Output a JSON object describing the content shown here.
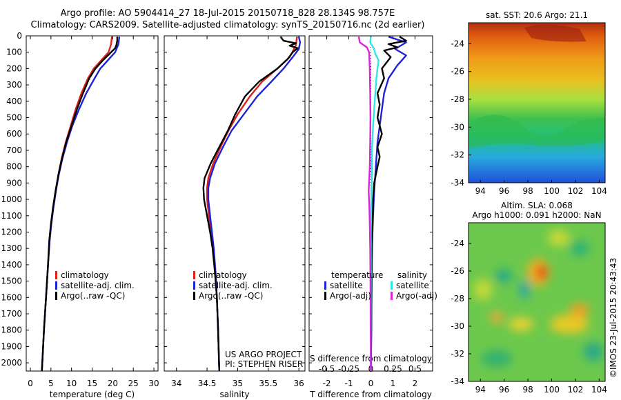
{
  "header": {
    "line1": "Argo profile: AO 5904414_27 18-Jul-2015 20150718_828 28.134S 98.757E",
    "line2": "Climatology: CARS2009. Satellite-adjusted climatology: synTS_20150716.nc (2d earlier)"
  },
  "colors": {
    "climatology": "#e0201b",
    "satellite": "#1d22d6",
    "argo": "#000000",
    "sal_satellite": "#2fe6e6",
    "sal_argo": "#e020e0"
  },
  "credit": {
    "line1": "US ARGO PROJECT",
    "line2": "PI: STEPHEN RISER"
  },
  "imos_stamp": "©IMOS 23-Jul-2015 20:43:43",
  "chart_data": [
    {
      "type": "line",
      "panel": "temperature",
      "xlabel": "temperature (deg C)",
      "xlim": [
        -1,
        31
      ],
      "ylim": [
        2050,
        0
      ],
      "xticks": [
        0,
        5,
        10,
        15,
        20,
        25,
        30
      ],
      "yticks": [
        0,
        100,
        200,
        300,
        400,
        500,
        600,
        700,
        800,
        900,
        1000,
        1100,
        1200,
        1300,
        1400,
        1500,
        1600,
        1700,
        1800,
        1900,
        2000
      ],
      "legend": [
        "climatology",
        "satellite-adj. clim.",
        "Argo(..raw -QC)"
      ],
      "series": [
        {
          "name": "climatology",
          "color_key": "climatology",
          "points": [
            [
              19.8,
              5
            ],
            [
              19.6,
              50
            ],
            [
              19.0,
              100
            ],
            [
              17.2,
              150
            ],
            [
              15.4,
              200
            ],
            [
              14.0,
              260
            ],
            [
              12.4,
              350
            ],
            [
              11.0,
              450
            ],
            [
              9.8,
              550
            ],
            [
              8.6,
              650
            ],
            [
              7.6,
              750
            ],
            [
              6.8,
              850
            ],
            [
              6.2,
              950
            ],
            [
              5.6,
              1050
            ],
            [
              5.1,
              1150
            ],
            [
              4.7,
              1250
            ],
            [
              4.3,
              1400
            ],
            [
              3.8,
              1600
            ],
            [
              3.3,
              1800
            ],
            [
              3.0,
              1950
            ],
            [
              2.8,
              2050
            ]
          ]
        },
        {
          "name": "satellite-adj. clim.",
          "color_key": "satellite",
          "points": [
            [
              21.6,
              5
            ],
            [
              21.4,
              50
            ],
            [
              20.6,
              100
            ],
            [
              18.8,
              150
            ],
            [
              17.0,
              200
            ],
            [
              15.6,
              260
            ],
            [
              13.6,
              350
            ],
            [
              11.8,
              450
            ],
            [
              10.2,
              550
            ],
            [
              8.9,
              650
            ],
            [
              7.8,
              750
            ],
            [
              6.9,
              850
            ],
            [
              6.2,
              950
            ],
            [
              5.6,
              1050
            ],
            [
              5.1,
              1150
            ],
            [
              4.7,
              1250
            ],
            [
              4.3,
              1400
            ],
            [
              3.8,
              1600
            ],
            [
              3.3,
              1800
            ],
            [
              3.0,
              1950
            ],
            [
              2.8,
              2050
            ]
          ]
        },
        {
          "name": "Argo(..raw -QC)",
          "color_key": "argo",
          "points": [
            [
              21.1,
              5
            ],
            [
              21.1,
              30
            ],
            [
              20.9,
              55
            ],
            [
              20.6,
              75
            ],
            [
              19.2,
              110
            ],
            [
              17.6,
              150
            ],
            [
              15.8,
              200
            ],
            [
              14.3,
              260
            ],
            [
              12.8,
              350
            ],
            [
              11.3,
              450
            ],
            [
              10.0,
              550
            ],
            [
              8.7,
              650
            ],
            [
              7.7,
              750
            ],
            [
              6.8,
              850
            ],
            [
              6.1,
              950
            ],
            [
              5.5,
              1050
            ],
            [
              5.0,
              1150
            ],
            [
              4.6,
              1250
            ],
            [
              4.3,
              1400
            ],
            [
              3.8,
              1600
            ],
            [
              3.3,
              1800
            ],
            [
              3.0,
              1950
            ],
            [
              2.8,
              2050
            ]
          ]
        }
      ]
    },
    {
      "type": "line",
      "panel": "salinity",
      "xlabel": "salinity",
      "xlim": [
        33.8,
        36.1
      ],
      "ylim": [
        2050,
        0
      ],
      "xticks": [
        34,
        34.5,
        35,
        35.5,
        36
      ],
      "legend": [
        "climatology",
        "satellite-adj. clim.",
        "Argo(..raw -QC)"
      ],
      "series": [
        {
          "name": "climatology",
          "color_key": "climatology",
          "points": [
            [
              35.97,
              5
            ],
            [
              35.95,
              60
            ],
            [
              35.85,
              130
            ],
            [
              35.65,
              200
            ],
            [
              35.4,
              280
            ],
            [
              35.2,
              370
            ],
            [
              35.0,
              480
            ],
            [
              34.85,
              580
            ],
            [
              34.72,
              680
            ],
            [
              34.6,
              780
            ],
            [
              34.52,
              870
            ],
            [
              34.5,
              930
            ],
            [
              34.5,
              1000
            ],
            [
              34.53,
              1100
            ],
            [
              34.57,
              1200
            ],
            [
              34.6,
              1300
            ],
            [
              34.63,
              1450
            ],
            [
              34.66,
              1600
            ],
            [
              34.68,
              1800
            ],
            [
              34.7,
              2050
            ]
          ]
        },
        {
          "name": "satellite-adj. clim.",
          "color_key": "satellite",
          "points": [
            [
              36.0,
              5
            ],
            [
              36.02,
              40
            ],
            [
              36.0,
              80
            ],
            [
              35.9,
              130
            ],
            [
              35.75,
              200
            ],
            [
              35.55,
              280
            ],
            [
              35.32,
              370
            ],
            [
              35.1,
              480
            ],
            [
              34.9,
              580
            ],
            [
              34.76,
              680
            ],
            [
              34.63,
              780
            ],
            [
              34.55,
              870
            ],
            [
              34.52,
              930
            ],
            [
              34.52,
              1000
            ],
            [
              34.55,
              1100
            ],
            [
              34.58,
              1200
            ],
            [
              34.61,
              1300
            ],
            [
              34.64,
              1450
            ],
            [
              34.66,
              1600
            ],
            [
              34.68,
              1800
            ],
            [
              34.7,
              2050
            ]
          ]
        },
        {
          "name": "Argo(..raw -QC)",
          "color_key": "argo",
          "points": [
            [
              35.7,
              5
            ],
            [
              35.75,
              30
            ],
            [
              35.95,
              45
            ],
            [
              35.85,
              60
            ],
            [
              35.98,
              75
            ],
            [
              35.9,
              100
            ],
            [
              35.82,
              140
            ],
            [
              35.65,
              200
            ],
            [
              35.35,
              280
            ],
            [
              35.12,
              370
            ],
            [
              34.96,
              480
            ],
            [
              34.84,
              580
            ],
            [
              34.7,
              680
            ],
            [
              34.56,
              780
            ],
            [
              34.46,
              870
            ],
            [
              34.44,
              930
            ],
            [
              34.45,
              1000
            ],
            [
              34.5,
              1100
            ],
            [
              34.55,
              1200
            ],
            [
              34.59,
              1300
            ],
            [
              34.63,
              1450
            ],
            [
              34.66,
              1600
            ],
            [
              34.68,
              1800
            ],
            [
              34.7,
              2050
            ]
          ]
        }
      ]
    },
    {
      "type": "line",
      "panel": "difference",
      "xlabel": "T difference from climatology",
      "x2label": "S difference from climatology",
      "xlim": [
        -2.8,
        2.8
      ],
      "ylim": [
        2050,
        0
      ],
      "xticks": [
        -2,
        -1,
        0,
        1,
        2
      ],
      "x2ticks": [
        -0.5,
        -0.25,
        0,
        0.25,
        0.5
      ],
      "x2scale": 4,
      "legend_groups": [
        {
          "title": "temperature",
          "items": [
            "satellite",
            "Argo(-adj)"
          ]
        },
        {
          "title": "salinity",
          "items": [
            "satellite",
            "Argo(-adj)"
          ]
        }
      ],
      "series": [
        {
          "name": "satellite",
          "group": "temperature",
          "color_key": "satellite",
          "points": [
            [
              0.8,
              5
            ],
            [
              1.6,
              40
            ],
            [
              1.1,
              80
            ],
            [
              1.6,
              120
            ],
            [
              1.2,
              180
            ],
            [
              0.8,
              260
            ],
            [
              0.6,
              350
            ],
            [
              0.5,
              450
            ],
            [
              0.4,
              550
            ],
            [
              0.3,
              650
            ],
            [
              0.25,
              750
            ],
            [
              0.2,
              850
            ],
            [
              0.15,
              950
            ],
            [
              0.1,
              1100
            ],
            [
              0.05,
              1300
            ],
            [
              0.03,
              1500
            ],
            [
              0.02,
              1800
            ],
            [
              0.0,
              2050
            ]
          ]
        },
        {
          "name": "Argo(-adj)",
          "group": "temperature",
          "color_key": "argo",
          "points": [
            [
              1.3,
              5
            ],
            [
              1.6,
              30
            ],
            [
              0.8,
              50
            ],
            [
              1.2,
              70
            ],
            [
              0.6,
              90
            ],
            [
              0.9,
              130
            ],
            [
              0.5,
              200
            ],
            [
              0.6,
              260
            ],
            [
              0.3,
              350
            ],
            [
              0.4,
              420
            ],
            [
              0.3,
              500
            ],
            [
              0.5,
              600
            ],
            [
              0.3,
              680
            ],
            [
              0.4,
              740
            ],
            [
              0.3,
              800
            ],
            [
              0.15,
              900
            ],
            [
              0.1,
              1000
            ],
            [
              0.08,
              1100
            ],
            [
              0.05,
              1300
            ],
            [
              0.03,
              1500
            ],
            [
              0.02,
              1800
            ],
            [
              0.0,
              2050
            ]
          ]
        },
        {
          "name": "satellite",
          "group": "salinity",
          "color_key": "sal_satellite",
          "points": [
            [
              0.0,
              5
            ],
            [
              -0.03,
              40
            ],
            [
              0.15,
              80
            ],
            [
              0.2,
              110
            ],
            [
              0.35,
              150
            ],
            [
              0.3,
              200
            ],
            [
              0.25,
              260
            ],
            [
              0.2,
              350
            ],
            [
              0.15,
              450
            ],
            [
              0.1,
              550
            ],
            [
              0.05,
              700
            ],
            [
              0.05,
              850
            ],
            [
              0.02,
              1000
            ],
            [
              0.0,
              1200
            ],
            [
              0.0,
              1500
            ],
            [
              0.0,
              1800
            ],
            [
              0.0,
              2050
            ]
          ]
        },
        {
          "name": "Argo(-adj)",
          "group": "salinity",
          "color_key": "sal_argo",
          "points": [
            [
              -0.55,
              5
            ],
            [
              -0.5,
              40
            ],
            [
              -0.18,
              70
            ],
            [
              -0.08,
              100
            ],
            [
              -0.05,
              200
            ],
            [
              -0.03,
              350
            ],
            [
              -0.02,
              500
            ],
            [
              -0.03,
              650
            ],
            [
              -0.05,
              800
            ],
            [
              -0.1,
              950
            ],
            [
              -0.07,
              1050
            ],
            [
              -0.05,
              1150
            ],
            [
              -0.03,
              1300
            ],
            [
              -0.02,
              1500
            ],
            [
              -0.01,
              1800
            ],
            [
              0.0,
              2050
            ]
          ]
        }
      ]
    },
    {
      "type": "heatmap",
      "panel": "sst_map",
      "title": "sat. SST: 20.6  Argo: 21.1",
      "xlim": [
        93,
        104.5
      ],
      "ylim": [
        -34,
        -22.5
      ],
      "xticks": [
        94,
        96,
        98,
        100,
        102,
        104
      ],
      "yticks": [
        -24,
        -26,
        -28,
        -30,
        -32,
        -34
      ]
    },
    {
      "type": "heatmap",
      "panel": "sla_map",
      "title_line1": "Altim. SLA: 0.068",
      "title_line2": "Argo h1000: 0.091 h2000: NaN",
      "xlim": [
        93,
        104.5
      ],
      "ylim": [
        -34,
        -22.5
      ],
      "xticks": [
        94,
        96,
        98,
        100,
        102,
        104
      ],
      "yticks": [
        -24,
        -26,
        -28,
        -30,
        -32,
        -34
      ]
    }
  ]
}
